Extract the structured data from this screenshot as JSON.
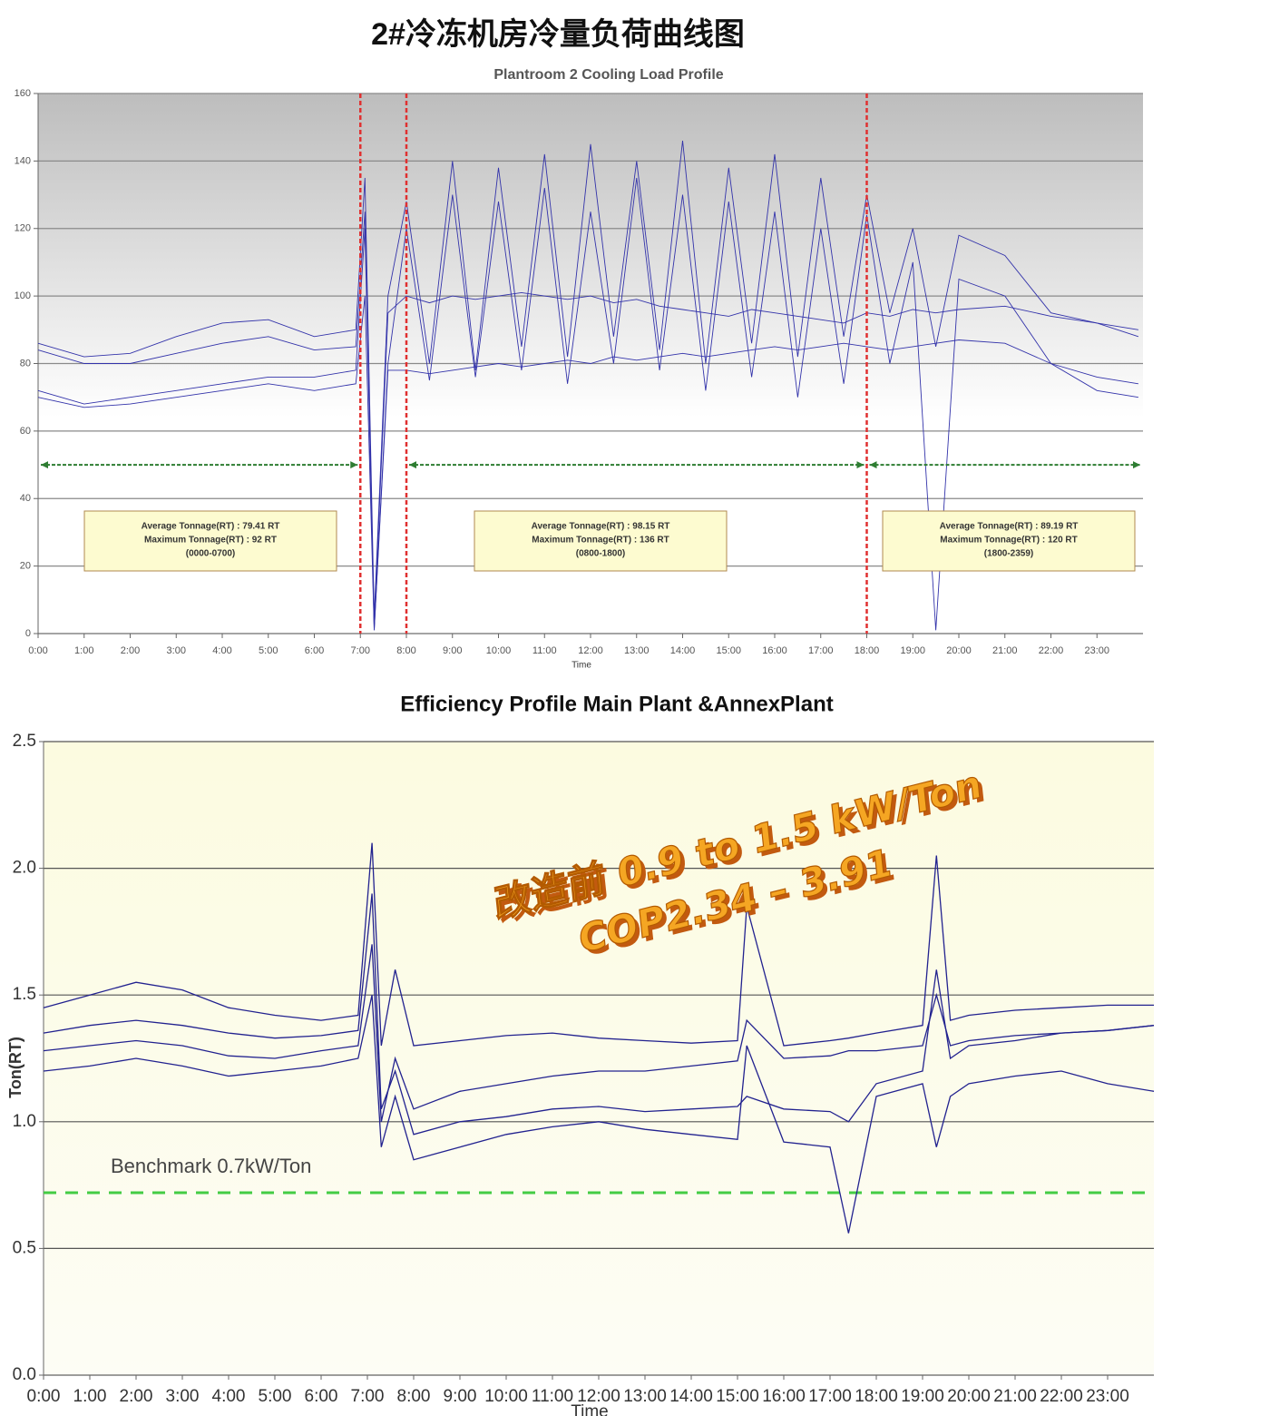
{
  "page_title": "2#冷冻机房冷量负荷曲线图",
  "chart_data": [
    {
      "type": "line",
      "title": "Plantroom 2 Cooling Load Profile",
      "x_label": "Time",
      "xlim": [
        0,
        24
      ],
      "ylim": [
        0,
        160
      ],
      "grid": true,
      "yticks": [
        0,
        20,
        40,
        60,
        80,
        100,
        120,
        140,
        160
      ],
      "xticks": [
        {
          "value": 0,
          "label": "0:00"
        },
        {
          "value": 1,
          "label": "1:00"
        },
        {
          "value": 2,
          "label": "2:00"
        },
        {
          "value": 3,
          "label": "3:00"
        },
        {
          "value": 4,
          "label": "4:00"
        },
        {
          "value": 5,
          "label": "5:00"
        },
        {
          "value": 6,
          "label": "6:00"
        },
        {
          "value": 7,
          "label": "7:00"
        },
        {
          "value": 8,
          "label": "8:00"
        },
        {
          "value": 9,
          "label": "9:00"
        },
        {
          "value": 10,
          "label": "10:00"
        },
        {
          "value": 11,
          "label": "11:00"
        },
        {
          "value": 12,
          "label": "12:00"
        },
        {
          "value": 13,
          "label": "13:00"
        },
        {
          "value": 14,
          "label": "14:00"
        },
        {
          "value": 15,
          "label": "15:00"
        },
        {
          "value": 16,
          "label": "16:00"
        },
        {
          "value": 17,
          "label": "17:00"
        },
        {
          "value": 18,
          "label": "18:00"
        },
        {
          "value": 19,
          "label": "19:00"
        },
        {
          "value": 20,
          "label": "20:00"
        },
        {
          "value": 21,
          "label": "21:00"
        },
        {
          "value": 22,
          "label": "22:00"
        },
        {
          "value": 23,
          "label": "23:00"
        }
      ],
      "vlines": [
        7,
        8,
        18
      ],
      "vline_color": "#e03030",
      "arrow_y": 50,
      "arrow_color": "#2e7d32",
      "annotations": [
        {
          "lines": [
            "Average Tonnage(RT) : 79.41 RT",
            "Maximum Tonnage(RT) : 92 RT",
            "(0000-0700)"
          ]
        },
        {
          "lines": [
            "Average Tonnage(RT) : 98.15 RT",
            "Maximum Tonnage(RT) : 136 RT",
            "(0800-1800)"
          ]
        },
        {
          "lines": [
            "Average Tonnage(RT) : 89.19 RT",
            "Maximum Tonnage(RT) : 120 RT",
            "(1800-2359)"
          ]
        }
      ],
      "x": [
        0,
        1,
        2,
        3,
        4,
        5,
        6,
        6.9,
        7.1,
        7.3,
        7.6,
        8,
        8.5,
        9,
        9.5,
        10,
        10.5,
        11,
        11.5,
        12,
        12.5,
        13,
        13.5,
        14,
        14.5,
        15,
        15.5,
        16,
        16.5,
        17,
        17.5,
        18,
        18.5,
        19,
        19.5,
        20,
        21,
        22,
        23,
        23.9
      ],
      "series": [
        {
          "color": "#3333aa",
          "values": [
            86,
            82,
            83,
            88,
            92,
            93,
            88,
            90,
            135,
            5,
            100,
            128,
            80,
            140,
            78,
            138,
            85,
            142,
            82,
            145,
            88,
            140,
            84,
            146,
            80,
            138,
            86,
            142,
            82,
            135,
            88,
            130,
            95,
            120,
            85,
            118,
            112,
            95,
            92,
            88
          ]
        },
        {
          "color": "#3333aa",
          "values": [
            84,
            80,
            80,
            83,
            86,
            88,
            84,
            85,
            125,
            2,
            95,
            100,
            98,
            100,
            99,
            100,
            101,
            100,
            99,
            100,
            98,
            99,
            97,
            96,
            95,
            94,
            96,
            95,
            94,
            93,
            92,
            95,
            94,
            96,
            95,
            96,
            97,
            94,
            92,
            90
          ]
        },
        {
          "color": "#3333aa",
          "values": [
            72,
            68,
            70,
            72,
            74,
            76,
            76,
            78,
            120,
            1,
            78,
            78,
            77,
            78,
            79,
            80,
            79,
            80,
            81,
            80,
            82,
            81,
            82,
            83,
            82,
            83,
            84,
            85,
            84,
            85,
            86,
            85,
            84,
            85,
            86,
            87,
            86,
            80,
            76,
            74
          ]
        },
        {
          "color": "#3333aa",
          "values": [
            70,
            67,
            68,
            70,
            72,
            74,
            72,
            74,
            100,
            1,
            80,
            120,
            75,
            130,
            76,
            128,
            78,
            132,
            74,
            125,
            80,
            135,
            78,
            130,
            72,
            128,
            76,
            125,
            70,
            120,
            74,
            124,
            80,
            110,
            1,
            105,
            100,
            80,
            72,
            70
          ]
        }
      ]
    },
    {
      "type": "line",
      "title": "Efficiency Profile Main Plant &AnnexPlant",
      "x_label": "Time",
      "y_label": "Ton(RT)",
      "xlim": [
        0,
        24
      ],
      "ylim": [
        0,
        2.5
      ],
      "grid": true,
      "yticks": [
        {
          "value": 0,
          "label": "0.0"
        },
        0.5,
        {
          "value": 1,
          "label": "1.0"
        },
        1.5,
        {
          "value": 2,
          "label": "2.0"
        },
        2.5
      ],
      "xticks": [
        {
          "value": 0,
          "label": "0:00"
        },
        {
          "value": 1,
          "label": "1:00"
        },
        {
          "value": 2,
          "label": "2:00"
        },
        {
          "value": 3,
          "label": "3:00"
        },
        {
          "value": 4,
          "label": "4:00"
        },
        {
          "value": 5,
          "label": "5:00"
        },
        {
          "value": 6,
          "label": "6:00"
        },
        {
          "value": 7,
          "label": "7:00"
        },
        {
          "value": 8,
          "label": "8:00"
        },
        {
          "value": 9,
          "label": "9:00"
        },
        {
          "value": 10,
          "label": "10:00"
        },
        {
          "value": 11,
          "label": "11:00"
        },
        {
          "value": 12,
          "label": "12:00"
        },
        {
          "value": 13,
          "label": "13:00"
        },
        {
          "value": 14,
          "label": "14:00"
        },
        {
          "value": 15,
          "label": "15:00"
        },
        {
          "value": 16,
          "label": "16:00"
        },
        {
          "value": 17,
          "label": "17:00"
        },
        {
          "value": 18,
          "label": "18:00"
        },
        {
          "value": 19,
          "label": "19:00"
        },
        {
          "value": 20,
          "label": "20:00"
        },
        {
          "value": 21,
          "label": "21:00"
        },
        {
          "value": 22,
          "label": "22:00"
        },
        {
          "value": 23,
          "label": "23:00"
        }
      ],
      "benchmark": {
        "value": 0.72,
        "label": "Benchmark 0.7kW/Ton",
        "color": "#44cc44"
      },
      "callout": [
        "改造前 0.9 to 1.5 kW/Ton",
        "COP2.34 – 3.91"
      ],
      "x": [
        0,
        1,
        2,
        3,
        4,
        5,
        6,
        6.8,
        7.1,
        7.3,
        7.6,
        8,
        9,
        10,
        11,
        12,
        13,
        14,
        15,
        15.2,
        16,
        17,
        17.4,
        18,
        19,
        19.3,
        19.6,
        20,
        21,
        22,
        23,
        24
      ],
      "series": [
        {
          "color": "#22228f",
          "values": [
            1.45,
            1.5,
            1.55,
            1.52,
            1.45,
            1.42,
            1.4,
            1.42,
            2.1,
            1.3,
            1.6,
            1.3,
            1.32,
            1.34,
            1.35,
            1.33,
            1.32,
            1.31,
            1.32,
            1.85,
            1.3,
            1.32,
            1.33,
            1.35,
            1.38,
            2.05,
            1.4,
            1.42,
            1.44,
            1.45,
            1.46,
            1.46
          ]
        },
        {
          "color": "#22228f",
          "values": [
            1.35,
            1.38,
            1.4,
            1.38,
            1.35,
            1.33,
            1.34,
            1.36,
            1.9,
            1.05,
            1.2,
            0.95,
            1.0,
            1.02,
            1.05,
            1.06,
            1.04,
            1.05,
            1.06,
            1.1,
            1.05,
            1.04,
            1.0,
            1.15,
            1.2,
            1.6,
            1.25,
            1.3,
            1.32,
            1.35,
            1.36,
            1.38
          ]
        },
        {
          "color": "#22228f",
          "values": [
            1.2,
            1.22,
            1.25,
            1.22,
            1.18,
            1.2,
            1.22,
            1.25,
            1.5,
            0.9,
            1.1,
            0.85,
            0.9,
            0.95,
            0.98,
            1.0,
            0.97,
            0.95,
            0.93,
            1.3,
            0.92,
            0.9,
            0.56,
            1.1,
            1.15,
            0.9,
            1.1,
            1.15,
            1.18,
            1.2,
            1.15,
            1.12
          ]
        },
        {
          "color": "#22228f",
          "values": [
            1.28,
            1.3,
            1.32,
            1.3,
            1.26,
            1.25,
            1.28,
            1.3,
            1.7,
            1.0,
            1.25,
            1.05,
            1.12,
            1.15,
            1.18,
            1.2,
            1.2,
            1.22,
            1.24,
            1.4,
            1.25,
            1.26,
            1.28,
            1.28,
            1.3,
            1.5,
            1.3,
            1.32,
            1.34,
            1.35,
            1.36,
            1.38
          ]
        }
      ]
    }
  ]
}
